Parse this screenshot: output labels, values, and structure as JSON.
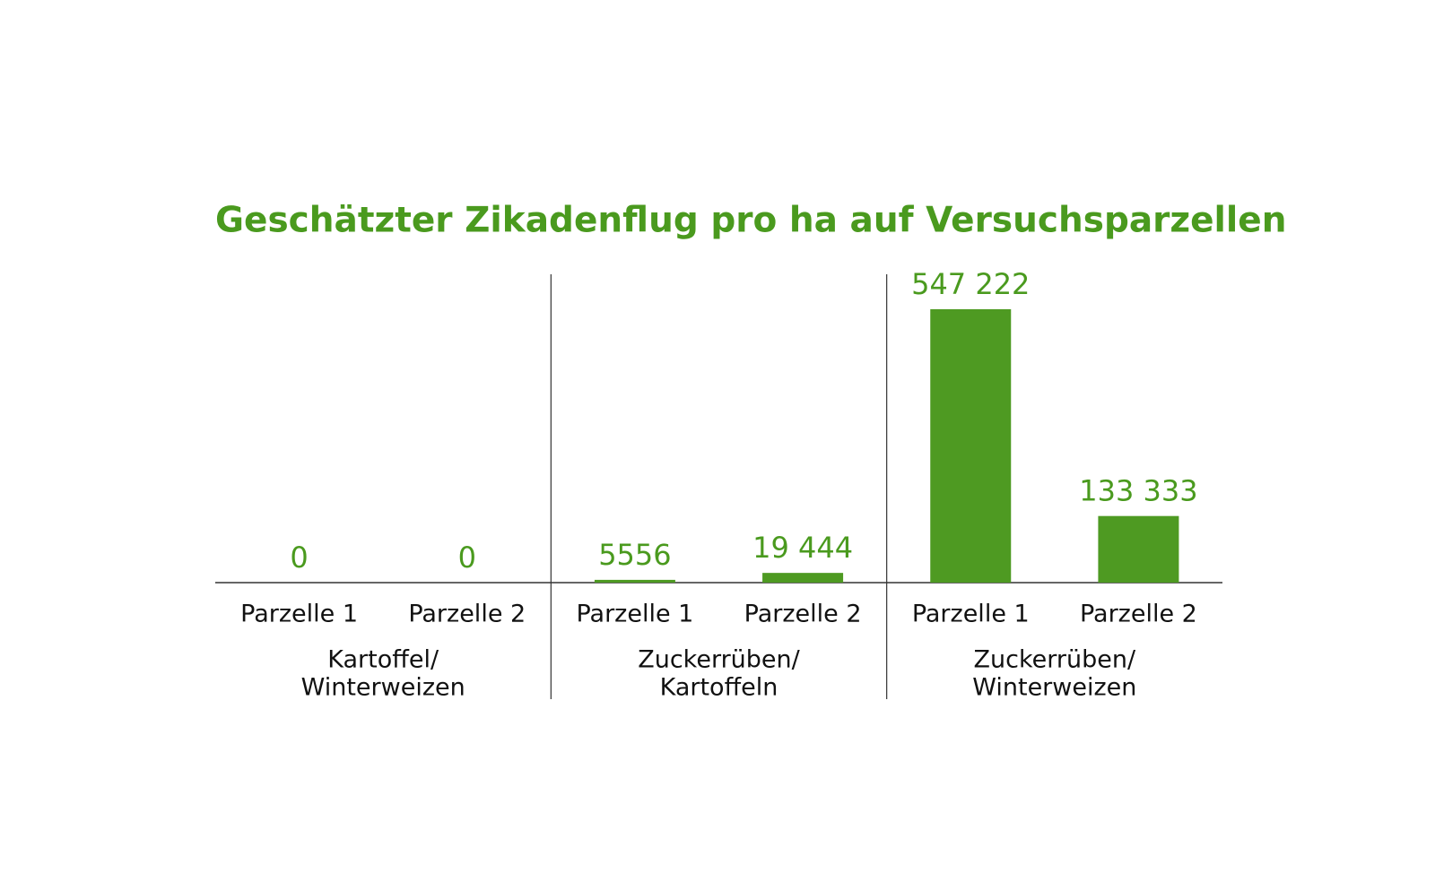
{
  "chart_data": {
    "type": "bar",
    "title": "Geschätzter Zikadenflug pro ha auf Versuchsparzellen",
    "categories": [
      "Parzelle 1",
      "Parzelle 2",
      "Parzelle 1",
      "Parzelle 2",
      "Parzelle 1",
      "Parzelle 2"
    ],
    "groups": [
      {
        "label": [
          "Kartoffel/",
          "Winterweizen"
        ],
        "size": 2
      },
      {
        "label": [
          "Zuckerrüben/",
          "Kartoffeln"
        ],
        "size": 2
      },
      {
        "label": [
          "Zuckerrüben/",
          "Winterweizen"
        ],
        "size": 2
      }
    ],
    "values": [
      0,
      0,
      5556,
      19444,
      547222,
      133333
    ],
    "value_labels": [
      "0",
      "0",
      "5556",
      "19 444",
      "547 222",
      "133 333"
    ],
    "color": "#4e9a22"
  }
}
